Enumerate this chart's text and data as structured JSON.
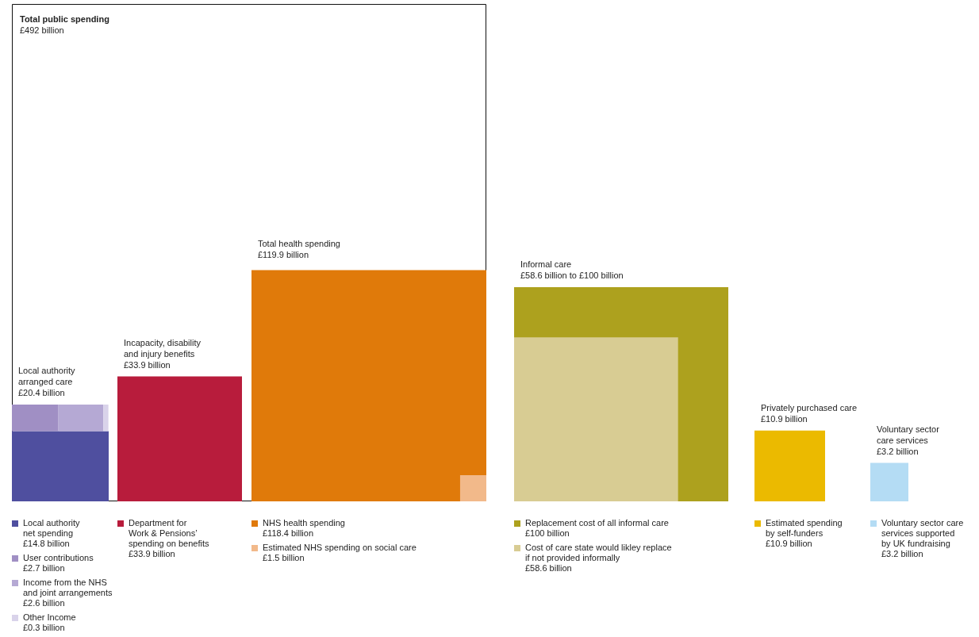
{
  "chart_data": [
    {
      "type": "other",
      "title": "Total public spending",
      "subtitle": "£492 billion"
    },
    {
      "type": "other",
      "title": "Local authority\narranged care",
      "subtitle": "£20.4 billion",
      "categories": [
        "Local authority\nnet spending",
        "User contributions",
        "Income from the NHS\nand joint arrangements",
        "Other Income"
      ],
      "values": [
        14.8,
        2.7,
        2.6,
        0.3
      ],
      "colors": [
        "#4f4f9f",
        "#a08fc4",
        "#b5a9d4",
        "#d9d3ea"
      ],
      "value_labels": [
        "£14.8 billion",
        "£2.7 billion",
        "£2.6 billion",
        "£0.3 billion"
      ]
    },
    {
      "type": "other",
      "title": "Incapacity, disability\nand injury benefits",
      "subtitle": "£33.9 billion",
      "categories": [
        "Department for\nWork & Pensions’\nspending on benefits"
      ],
      "values": [
        33.9
      ],
      "colors": [
        "#b81c3c"
      ],
      "value_labels": [
        "£33.9 billion"
      ]
    },
    {
      "type": "other",
      "title": "Total health spending",
      "subtitle": "£119.9 billion",
      "categories": [
        "NHS health spending",
        "Estimated NHS spending on social care"
      ],
      "values": [
        118.4,
        1.5
      ],
      "colors": [
        "#e07a0a",
        "#f2b98a"
      ],
      "value_labels": [
        "£118.4 billion",
        "£1.5 billion"
      ]
    },
    {
      "type": "other",
      "title": "Informal care",
      "subtitle": "£58.6 billion to £100 billion",
      "categories": [
        "Replacement cost of all informal care",
        "Cost of care state would likley replace\nif not provided informally"
      ],
      "values": [
        100,
        58.6
      ],
      "colors": [
        "#ada11e",
        "#d8cc93"
      ],
      "value_labels": [
        "£100 billion",
        "£58.6 billion"
      ]
    },
    {
      "type": "other",
      "title": "Privately purchased care",
      "subtitle": "£10.9 billion",
      "categories": [
        "Estimated spending\nby self-funders"
      ],
      "values": [
        10.9
      ],
      "colors": [
        "#ebba00"
      ],
      "value_labels": [
        "£10.9 billion"
      ]
    },
    {
      "type": "other",
      "title": "Voluntary sector\ncare services",
      "subtitle": "£3.2 billion",
      "categories": [
        "Voluntary sector care\nservices supported\nby UK fundraising"
      ],
      "values": [
        3.2
      ],
      "colors": [
        "#b4dcf4"
      ],
      "value_labels": [
        "£3.2 billion"
      ]
    }
  ]
}
